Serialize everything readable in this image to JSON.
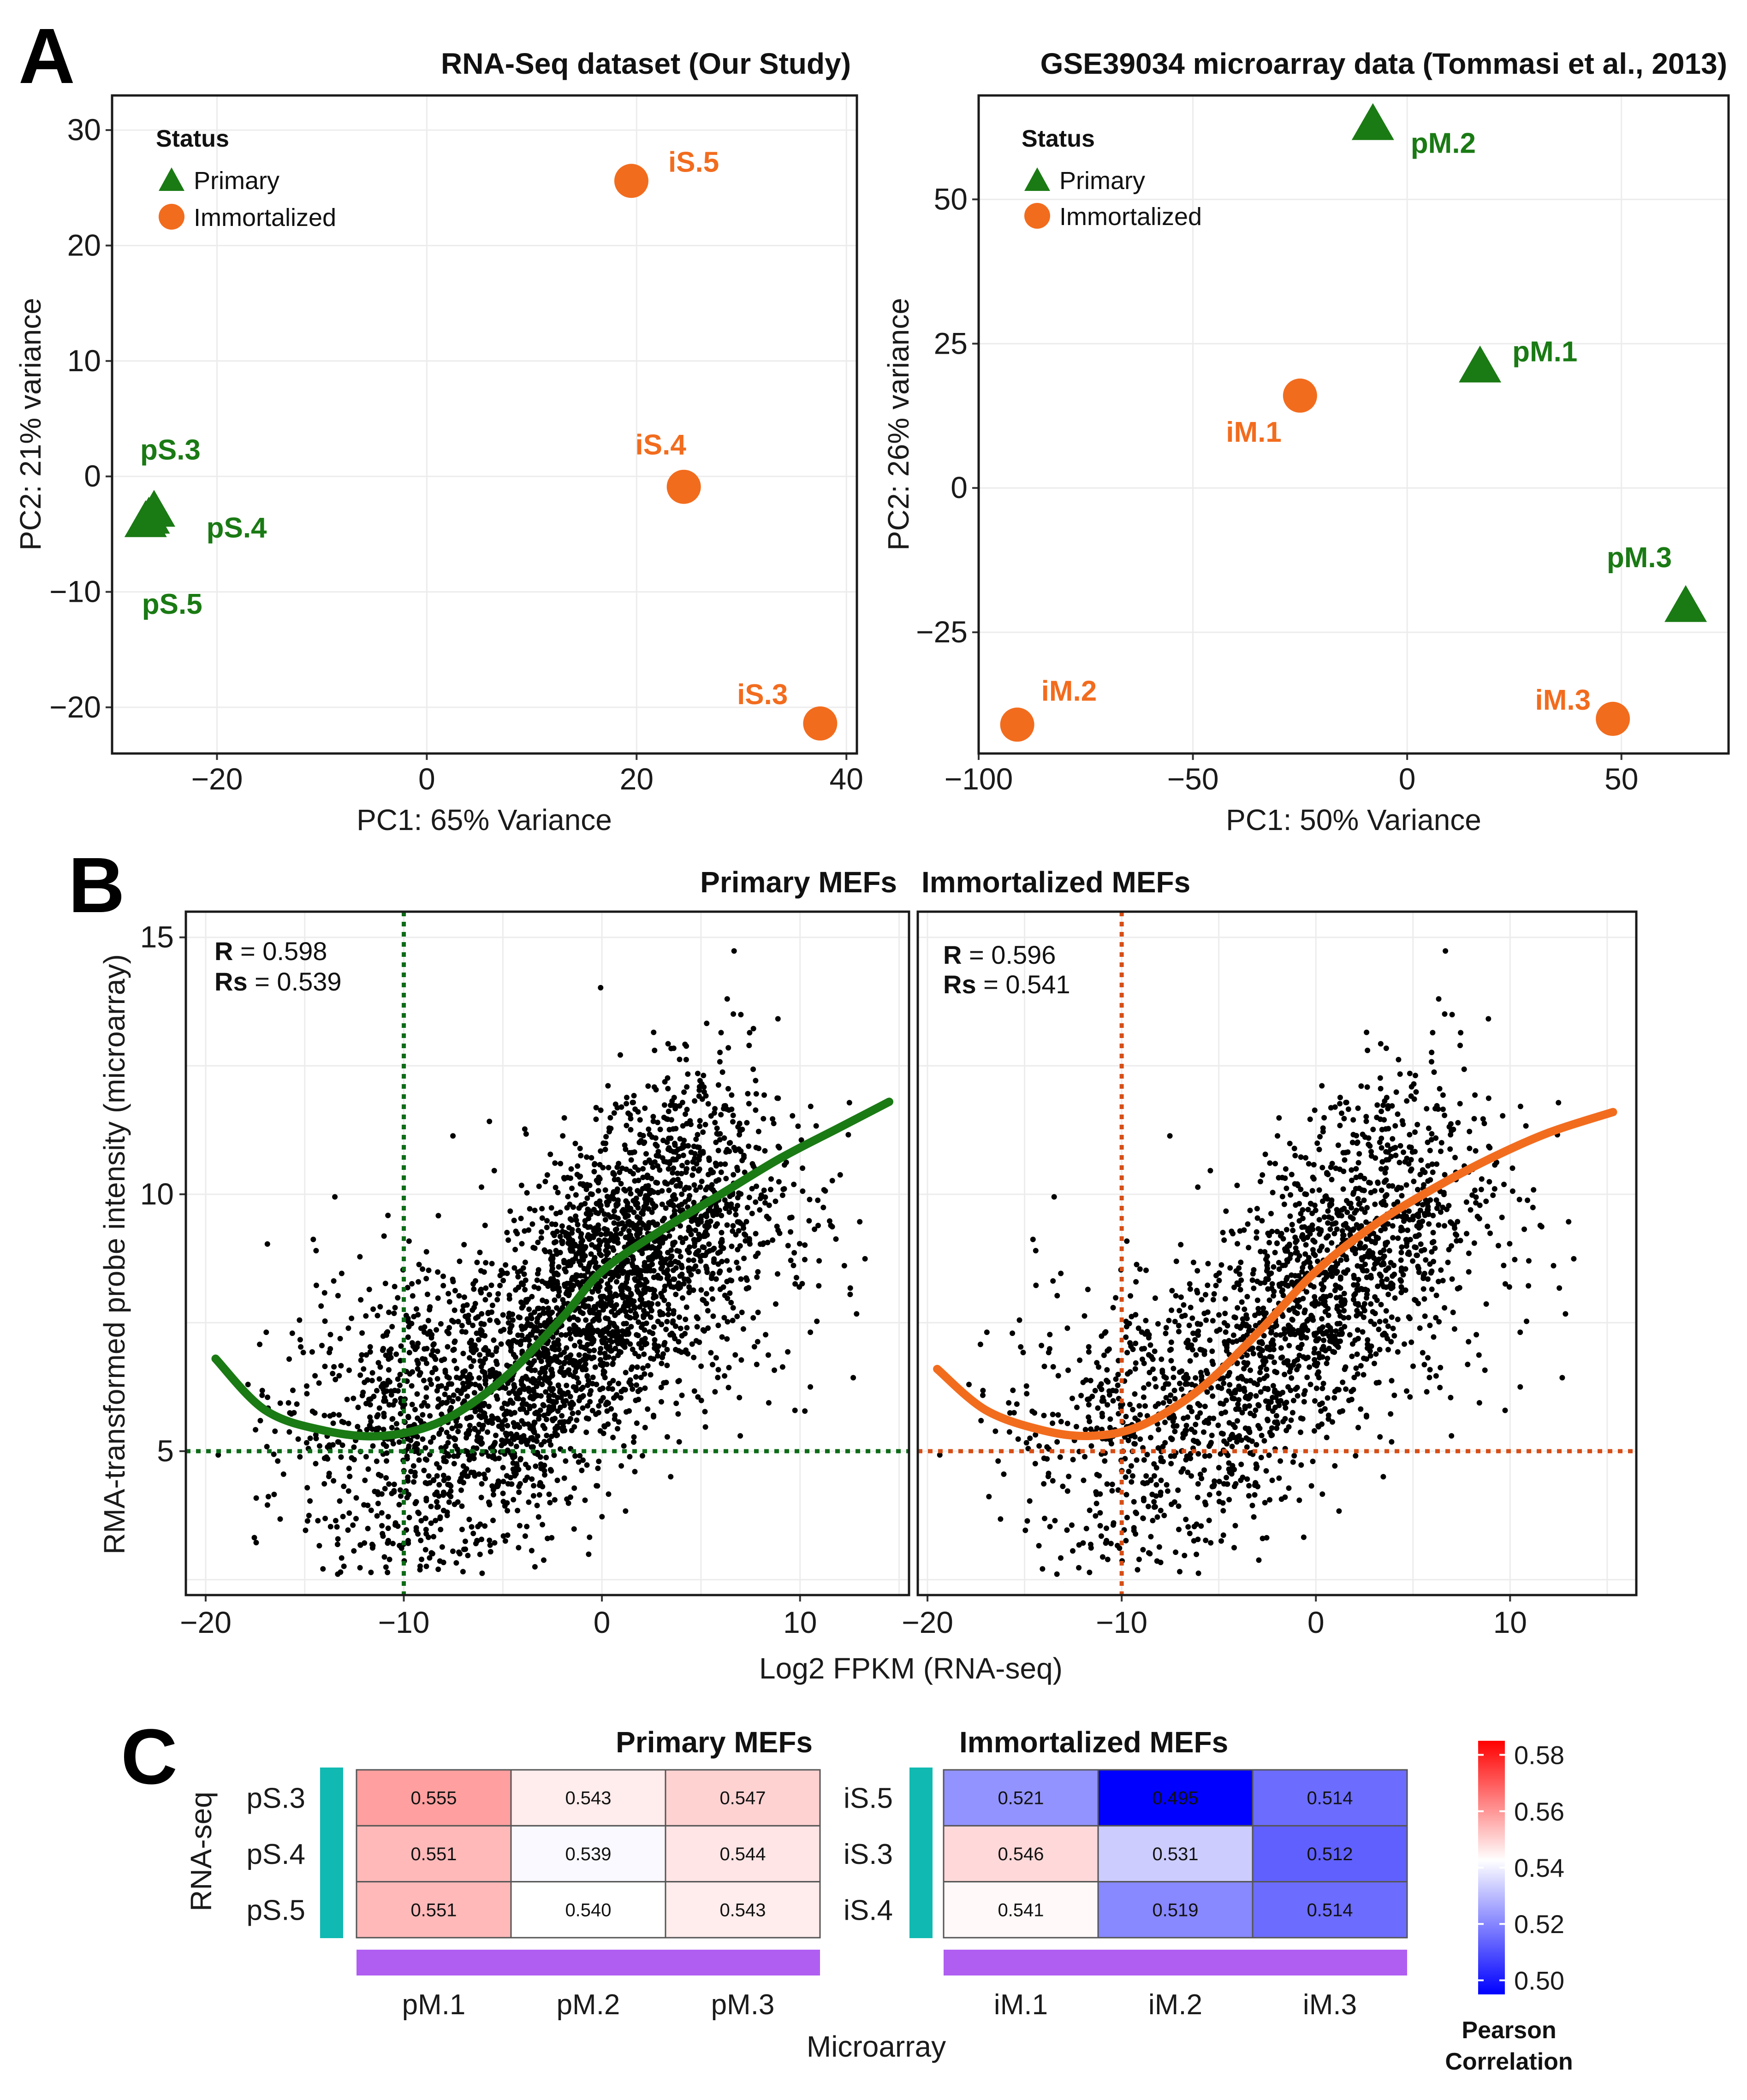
{
  "panel_labels": {
    "a": "A",
    "b": "B",
    "c": "C"
  },
  "colors": {
    "primary": "#1a7a14",
    "immortalized": "#f26c1e",
    "teal": "#10b9b1",
    "purple": "#b05ef2",
    "dark_green": "#0d6b17",
    "dark_orange": "#d64e16"
  },
  "chart_data": [
    {
      "id": "pca_rnaseq",
      "type": "scatter",
      "title": "RNA-Seq dataset (Our Study)",
      "xlabel": "PC1: 65% Variance",
      "ylabel": "PC2: 21% variance",
      "xlim": [
        -30,
        41
      ],
      "ylim": [
        -24,
        33
      ],
      "xticks": [
        -20,
        0,
        20,
        40
      ],
      "xtick_labels": [
        "−20",
        "0",
        "20",
        "40"
      ],
      "yticks": [
        -20,
        -10,
        0,
        10,
        20,
        30
      ],
      "ytick_labels": [
        "−20",
        "−10",
        "0",
        "10",
        "20",
        "30"
      ],
      "legend": {
        "title": "Status",
        "items": [
          "Primary",
          "Immortalized"
        ],
        "position": "top-left"
      },
      "points": [
        {
          "label": "iS.5",
          "group": "Immortalized",
          "x": 19.5,
          "y": 25.6
        },
        {
          "label": "iS.4",
          "group": "Immortalized",
          "x": 24.5,
          "y": -0.9
        },
        {
          "label": "iS.3",
          "group": "Immortalized",
          "x": 37.5,
          "y": -21.4
        },
        {
          "label": "pS.3",
          "group": "Primary",
          "x": -26.0,
          "y": -3.0
        },
        {
          "label": "pS.4",
          "group": "Primary",
          "x": -26.5,
          "y": -3.6
        },
        {
          "label": "pS.5",
          "group": "Primary",
          "x": -26.8,
          "y": -3.9
        }
      ]
    },
    {
      "id": "pca_microarray",
      "type": "scatter",
      "title": "GSE39034 microarray data  (Tommasi et al., 2013)",
      "xlabel": "PC1: 50% Variance",
      "ylabel": "PC2: 26% variance",
      "xlim": [
        -100,
        75
      ],
      "ylim": [
        -46,
        68
      ],
      "xticks": [
        -100,
        -50,
        0,
        50
      ],
      "xtick_labels": [
        "−100",
        "−50",
        "0",
        "50"
      ],
      "yticks": [
        -25,
        0,
        25,
        50
      ],
      "ytick_labels": [
        "−25",
        "0",
        "25",
        "50"
      ],
      "legend": {
        "title": "Status",
        "items": [
          "Primary",
          "Immortalized"
        ],
        "position": "top-left"
      },
      "points": [
        {
          "label": "pM.2",
          "group": "Primary",
          "x": -8.0,
          "y": 63.0
        },
        {
          "label": "pM.1",
          "group": "Primary",
          "x": 17.0,
          "y": 21.0
        },
        {
          "label": "pM.3",
          "group": "Primary",
          "x": 65.0,
          "y": -20.5
        },
        {
          "label": "iM.1",
          "group": "Immortalized",
          "x": -25.0,
          "y": 16.0
        },
        {
          "label": "iM.2",
          "group": "Immortalized",
          "x": -91.0,
          "y": -41.0
        },
        {
          "label": "iM.3",
          "group": "Immortalized",
          "x": 48.0,
          "y": -40.0
        }
      ]
    },
    {
      "id": "scatter_primary",
      "type": "scatter",
      "title": "Primary MEFs",
      "xlim": [
        -21,
        15.5
      ],
      "ylim": [
        2.2,
        15.5
      ],
      "xticks": [
        -20,
        -10,
        0,
        10
      ],
      "xtick_labels": [
        "−20",
        "−10",
        "0",
        "10"
      ],
      "yticks": [
        5,
        10,
        15
      ],
      "ytick_labels": [
        "5",
        "10",
        "15"
      ],
      "R": "0.598",
      "Rs": "0.539",
      "vline": -10,
      "hline": 5,
      "n_points_approx": 12000,
      "trend": {
        "x": [
          -19.5,
          -17,
          -14,
          -11,
          -8,
          -5,
          -2,
          0,
          3,
          6,
          9,
          12,
          14.5
        ],
        "y": [
          6.8,
          5.8,
          5.4,
          5.3,
          5.6,
          6.4,
          7.6,
          8.5,
          9.3,
          10.0,
          10.7,
          11.3,
          11.8
        ]
      }
    },
    {
      "id": "scatter_immortalized",
      "type": "scatter",
      "title": "Immortalized MEFs",
      "xlim": [
        -20.5,
        16.5
      ],
      "ylim": [
        2.2,
        15.5
      ],
      "xticks": [
        -20,
        -10,
        0,
        10
      ],
      "xtick_labels": [
        "−20",
        "−10",
        "0",
        "10"
      ],
      "R": "0.596",
      "Rs": "0.541",
      "vline": -10,
      "hline": 5,
      "n_points_approx": 12000,
      "trend": {
        "x": [
          -19.5,
          -17,
          -14,
          -11.5,
          -9,
          -6,
          -3,
          0,
          3,
          6,
          9,
          12,
          15.3
        ],
        "y": [
          6.6,
          5.8,
          5.4,
          5.3,
          5.5,
          6.2,
          7.3,
          8.5,
          9.4,
          10.1,
          10.7,
          11.2,
          11.6
        ]
      }
    },
    {
      "id": "heatmap_primary",
      "type": "heatmap",
      "title": "Primary MEFs",
      "rows": [
        "pS.3",
        "pS.4",
        "pS.5"
      ],
      "cols": [
        "pM.1",
        "pM.2",
        "pM.3"
      ],
      "values": [
        [
          0.555,
          0.543,
          0.547
        ],
        [
          0.551,
          0.539,
          0.544
        ],
        [
          0.551,
          0.54,
          0.543
        ]
      ],
      "labels": [
        [
          "0.555",
          "0.543",
          "0.547"
        ],
        [
          "0.551",
          "0.539",
          "0.544"
        ],
        [
          "0.551",
          "0.540",
          "0.543"
        ]
      ]
    },
    {
      "id": "heatmap_immortalized",
      "type": "heatmap",
      "title": "Immortalized MEFs",
      "rows": [
        "iS.5",
        "iS.3",
        "iS.4"
      ],
      "cols": [
        "iM.1",
        "iM.2",
        "iM.3"
      ],
      "values": [
        [
          0.521,
          0.495,
          0.514
        ],
        [
          0.546,
          0.531,
          0.512
        ],
        [
          0.541,
          0.519,
          0.514
        ]
      ],
      "labels": [
        [
          "0.521",
          "0.495",
          "0.514"
        ],
        [
          "0.546",
          "0.531",
          "0.512"
        ],
        [
          "0.541",
          "0.519",
          "0.514"
        ]
      ]
    }
  ],
  "panel_b": {
    "xlabel": "Log2 FPKM (RNA-seq)",
    "ylabel": "RMA-transformed probe intensity (microarray)"
  },
  "panel_c": {
    "ylabel": "RNA-seq",
    "xlabel": "Microarray",
    "colorbar": {
      "title_line1": "Pearson",
      "title_line2": "Correlation",
      "min": 0.495,
      "mid": 0.54,
      "max": 0.58,
      "ticks": [
        "0.58",
        "0.56",
        "0.54",
        "0.52",
        "0.50"
      ],
      "tick_values": [
        0.58,
        0.56,
        0.54,
        0.52,
        0.5
      ]
    }
  }
}
